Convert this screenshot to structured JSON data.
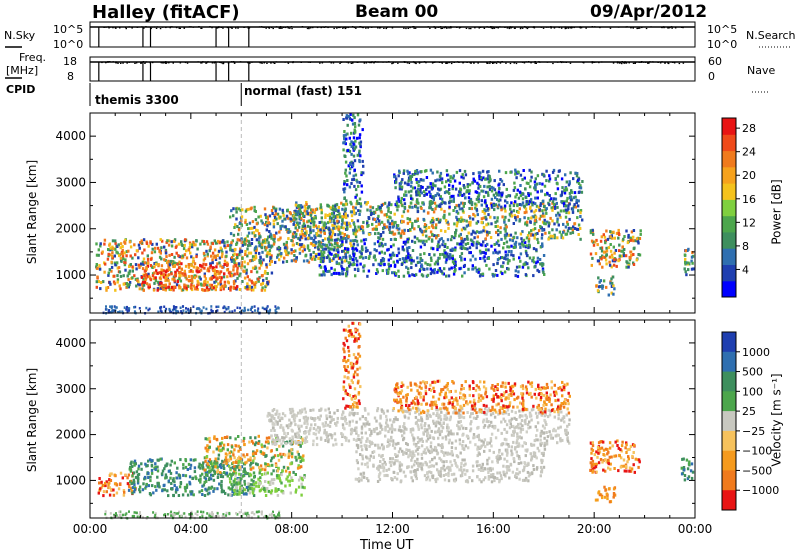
{
  "header": {
    "station": "Halley (fitACF)",
    "beam": "Beam 00",
    "date": "09/Apr/2012"
  },
  "strips": {
    "nsky_label": "N.Sky",
    "nsky_ticks": [
      "10^5",
      "10^0"
    ],
    "nsearch_label": "N.Search",
    "nsearch_ticks": [
      "10^5",
      "10^0"
    ],
    "freq_label": "Freq.",
    "freq_unit": "[MHz]",
    "freq_ticks": [
      "18",
      "8"
    ],
    "nave_label": "Nave",
    "nave_ticks": [
      "60",
      "0"
    ],
    "cpid_label": "CPID",
    "cpid_modes": [
      "themis 3300",
      "normal (fast) 151"
    ],
    "cpid_change_time": 6.0
  },
  "chart_data": [
    {
      "type": "heatmap",
      "panel": "power",
      "ylabel": "Slant Range [km]",
      "xlabel": "Time UT",
      "x_ticks": [
        "00:00",
        "04:00",
        "08:00",
        "12:00",
        "16:00",
        "20:00",
        "00:00"
      ],
      "x_range_hours": [
        0,
        24
      ],
      "y_ticks": [
        "1000",
        "2000",
        "3000",
        "4000"
      ],
      "y_range_km": [
        180,
        4500
      ],
      "colorbar_label": "Power [dB]",
      "colorbar_ticks": [
        "4",
        "8",
        "12",
        "16",
        "20",
        "24",
        "28"
      ],
      "colorbar_colors": [
        "#0000ff",
        "#1f3fb0",
        "#2f6fb0",
        "#3e8f5e",
        "#4ca64c",
        "#7fcf3f",
        "#f4c21d",
        "#f6a21d",
        "#f07a1d",
        "#ef4a1a",
        "#e81414"
      ],
      "regions": [
        {
          "t0": 0.2,
          "t1": 7.2,
          "r0": 700,
          "r1": 1800,
          "level": "high"
        },
        {
          "t0": 2.0,
          "t1": 5.8,
          "r0": 700,
          "r1": 1300,
          "level": "peak"
        },
        {
          "t0": 5.5,
          "t1": 10.5,
          "r0": 1300,
          "r1": 2500,
          "level": "mid"
        },
        {
          "t0": 8.0,
          "t1": 19.5,
          "r0": 1800,
          "r1": 2600,
          "level": "mid"
        },
        {
          "t0": 9.0,
          "t1": 18.0,
          "r0": 1000,
          "r1": 1800,
          "level": "low"
        },
        {
          "t0": 10.0,
          "t1": 10.8,
          "r0": 2600,
          "r1": 4500,
          "level": "low"
        },
        {
          "t0": 12.0,
          "t1": 19.5,
          "r0": 2500,
          "r1": 3300,
          "level": "low"
        },
        {
          "t0": 19.8,
          "t1": 21.8,
          "r0": 1200,
          "r1": 2000,
          "level": "high"
        },
        {
          "t0": 20.0,
          "t1": 20.8,
          "r0": 600,
          "r1": 1000,
          "level": "mid"
        },
        {
          "t0": 23.4,
          "t1": 23.9,
          "r0": 1000,
          "r1": 1600,
          "level": "mid"
        }
      ]
    },
    {
      "type": "heatmap",
      "panel": "velocity",
      "ylabel": "Slant Range [km]",
      "xlabel": "Time UT",
      "x_ticks": [
        "00:00",
        "04:00",
        "08:00",
        "12:00",
        "16:00",
        "20:00",
        "00:00"
      ],
      "x_range_hours": [
        0,
        24
      ],
      "y_ticks": [
        "1000",
        "2000",
        "3000",
        "4000"
      ],
      "y_range_km": [
        180,
        4500
      ],
      "colorbar_label": "Velocity [m s⁻¹]",
      "colorbar_ticks": [
        "1000",
        "500",
        "100",
        "25",
        "−25",
        "−100",
        "−500",
        "−1000"
      ],
      "colorbar_colors": [
        "#1f3fb0",
        "#2f6fb0",
        "#3e8f5e",
        "#4ca64c",
        "#c8c8c0",
        "#f6c25d",
        "#f59a1d",
        "#f07a1d",
        "#e81414"
      ],
      "regions": [
        {
          "t0": 0.3,
          "t1": 1.8,
          "r0": 700,
          "r1": 1200,
          "level": "neg"
        },
        {
          "t0": 1.5,
          "t1": 6.5,
          "r0": 700,
          "r1": 1500,
          "level": "pos"
        },
        {
          "t0": 4.5,
          "t1": 8.5,
          "r0": 1200,
          "r1": 2000,
          "level": "mixed"
        },
        {
          "t0": 5.5,
          "t1": 8.5,
          "r0": 700,
          "r1": 1200,
          "level": "poslight"
        },
        {
          "t0": 7.0,
          "t1": 19.0,
          "r0": 1800,
          "r1": 2600,
          "level": "gray"
        },
        {
          "t0": 10.5,
          "t1": 18.0,
          "r0": 1000,
          "r1": 1800,
          "level": "gray"
        },
        {
          "t0": 10.0,
          "t1": 10.7,
          "r0": 2600,
          "r1": 4500,
          "level": "neg"
        },
        {
          "t0": 12.0,
          "t1": 19.0,
          "r0": 2500,
          "r1": 3200,
          "level": "neg"
        },
        {
          "t0": 19.8,
          "t1": 21.8,
          "r0": 1200,
          "r1": 1900,
          "level": "neg"
        },
        {
          "t0": 20.0,
          "t1": 20.8,
          "r0": 550,
          "r1": 900,
          "level": "negorange"
        },
        {
          "t0": 23.4,
          "t1": 23.9,
          "r0": 1000,
          "r1": 1500,
          "level": "pos"
        }
      ]
    }
  ]
}
